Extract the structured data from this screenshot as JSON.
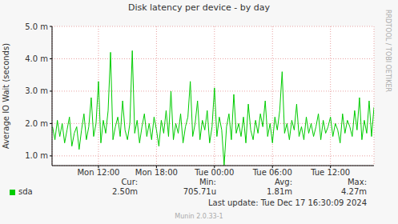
{
  "chart_data": {
    "type": "line",
    "title": "Disk latency per device - by day",
    "y_label": "Average IO Wait (seconds)",
    "annotations": [
      "RRDTOOL / TOBI OETIKER",
      "Munin 2.0.33-1"
    ],
    "stats": [
      {
        "label": "Cur:",
        "value": "2.50m"
      },
      {
        "label": "Min:",
        "value": "705.71u"
      },
      {
        "label": "Avg:",
        "value": "1.81m"
      },
      {
        "label": "Max:",
        "value": "4.27m"
      }
    ],
    "last_update": "Last update:  Tue Dec 17 16:30:09 2024",
    "x": [
      7.25,
      7.5,
      7.75,
      8,
      8.25,
      8.5,
      8.75,
      9,
      9.25,
      9.5,
      9.75,
      10,
      10.25,
      10.5,
      10.75,
      11,
      11.25,
      11.5,
      11.75,
      12,
      12.25,
      12.5,
      12.75,
      13,
      13.25,
      13.5,
      13.75,
      14,
      14.25,
      14.5,
      14.75,
      15,
      15.25,
      15.5,
      15.75,
      16,
      16.25,
      16.5,
      16.75,
      17,
      17.25,
      17.5,
      17.75,
      18,
      18.25,
      18.5,
      18.75,
      19,
      19.25,
      19.5,
      19.75,
      20,
      20.25,
      20.5,
      20.75,
      21,
      21.25,
      21.5,
      21.75,
      22,
      22.25,
      22.5,
      22.75,
      23,
      23.25,
      23.5,
      23.75,
      24,
      24.25,
      24.5,
      24.75,
      25,
      25.25,
      25.5,
      25.75,
      26,
      26.25,
      26.5,
      26.75,
      27,
      27.25,
      27.5,
      27.75,
      28,
      28.25,
      28.5,
      28.75,
      29,
      29.25,
      29.5,
      29.75,
      30,
      30.25,
      30.5,
      30.75,
      31,
      31.25,
      31.5,
      31.75,
      32,
      32.25,
      32.5,
      32.75,
      33,
      33.25,
      33.5,
      33.75,
      34,
      34.25,
      34.5,
      34.75,
      35,
      35.25,
      35.5,
      35.75,
      36,
      36.25,
      36.5,
      36.75,
      37,
      37.25,
      37.5,
      37.75,
      38,
      38.25,
      38.5,
      38.75,
      39,
      39.25,
      39.5,
      39.75,
      40,
      40.25,
      40.5
    ],
    "series": [
      {
        "name": "sda",
        "color": "#00cc00",
        "values": [
          0.0019,
          0.0015,
          0.0021,
          0.0016,
          0.002,
          0.0014,
          0.0018,
          0.0022,
          0.0013,
          0.0017,
          0.0019,
          0.0012,
          0.0018,
          0.0023,
          0.0015,
          0.0019,
          0.0028,
          0.0016,
          0.002,
          0.0033,
          0.0014,
          0.0021,
          0.0017,
          0.0024,
          0.0042,
          0.0015,
          0.0019,
          0.0022,
          0.0016,
          0.0027,
          0.0018,
          0.0015,
          0.002,
          0.00425,
          0.0017,
          0.0021,
          0.0014,
          0.0019,
          0.0023,
          0.0016,
          0.002,
          0.0015,
          0.0022,
          0.0018,
          0.0013,
          0.0021,
          0.0017,
          0.0024,
          0.0016,
          0.003,
          0.0015,
          0.002,
          0.0017,
          0.0023,
          0.0014,
          0.0019,
          0.0022,
          0.0033,
          0.0016,
          0.002,
          0.0027,
          0.0015,
          0.0021,
          0.0018,
          0.0024,
          0.0014,
          0.0019,
          0.0031,
          0.0016,
          0.0022,
          0.0018,
          0.00071,
          0.0019,
          0.0023,
          0.0015,
          0.0029,
          0.0017,
          0.002,
          0.0016,
          0.0022,
          0.0014,
          0.0026,
          0.0018,
          0.0015,
          0.0021,
          0.0017,
          0.0023,
          0.0019,
          0.0027,
          0.0016,
          0.002,
          0.0014,
          0.0022,
          0.0018,
          0.0024,
          0.0036,
          0.0017,
          0.002,
          0.0015,
          0.0021,
          0.0018,
          0.0026,
          0.0016,
          0.0019,
          0.0015,
          0.0022,
          0.0017,
          0.002,
          0.0016,
          0.0019,
          0.0023,
          0.0015,
          0.0021,
          0.0017,
          0.0019,
          0.0022,
          0.0016,
          0.002,
          0.0018,
          0.0014,
          0.0023,
          0.0017,
          0.0021,
          0.0019,
          0.0016,
          0.0024,
          0.0018,
          0.0028,
          0.0015,
          0.0021,
          0.0017,
          0.0027,
          0.0016,
          0.0025
        ]
      }
    ],
    "xlim": [
      7.2,
      40.5
    ],
    "xticks": [
      {
        "value": 12,
        "label": "Mon 12:00"
      },
      {
        "value": 18,
        "label": "Mon 18:00"
      },
      {
        "value": 24,
        "label": "Tue 00:00"
      },
      {
        "value": 30,
        "label": "Tue 06:00"
      },
      {
        "value": 36,
        "label": "Tue 12:00"
      }
    ],
    "ylim": [
      0.0007,
      0.005
    ],
    "yticks": [
      {
        "value": 0.001,
        "label": "1.0 m"
      },
      {
        "value": 0.002,
        "label": "2.0 m"
      },
      {
        "value": 0.003,
        "label": "3.0 m"
      },
      {
        "value": 0.004,
        "label": "4.0 m"
      },
      {
        "value": 0.005,
        "label": "5.0 m"
      }
    ],
    "grid": true,
    "legend": "bottom"
  }
}
